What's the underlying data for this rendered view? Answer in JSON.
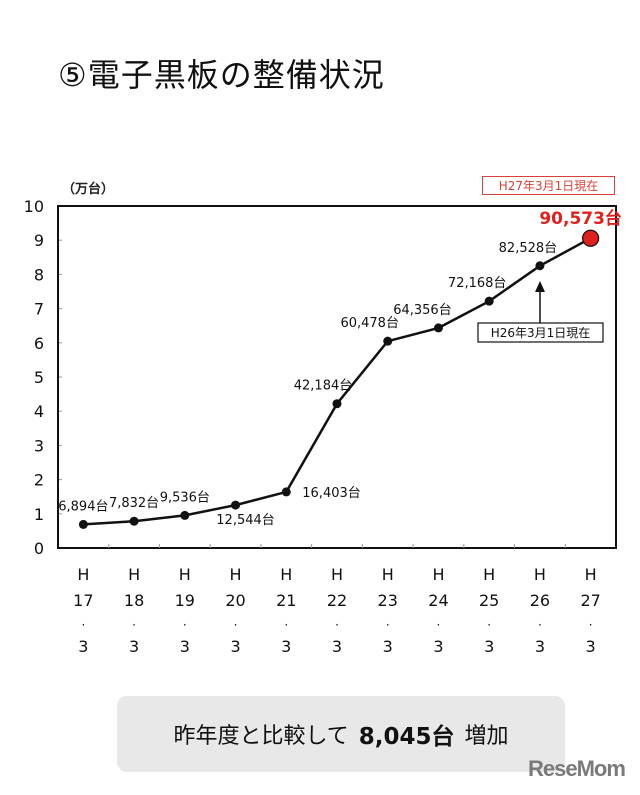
{
  "title": "⑤電子黒板の整備状況",
  "unit_label": "（万台）",
  "as_of_current": "H27年3月1日現在",
  "as_of_previous": "H26年3月1日現在",
  "summary": {
    "prefix": "昨年度と比較して",
    "value": "8,045台",
    "suffix": "増加"
  },
  "watermark": "ReseMom",
  "colors": {
    "line": "#111111",
    "highlight": "#e0201c",
    "highlight_text": "#e0201c",
    "summary_bg": "#e8e8e8"
  },
  "chart_data": {
    "type": "line",
    "title": "⑤電子黒板の整備状況",
    "xlabel": "",
    "ylabel": "（万台）",
    "ylim": [
      0,
      10
    ],
    "yticks": [
      0,
      1,
      2,
      3,
      4,
      5,
      6,
      7,
      8,
      9,
      10
    ],
    "grid": false,
    "categories": [
      "H17.3",
      "H18.3",
      "H19.3",
      "H20.3",
      "H21.3",
      "H22.3",
      "H23.3",
      "H24.3",
      "H25.3",
      "H26.3",
      "H27.3"
    ],
    "category_parts": [
      [
        "H",
        "17",
        "・",
        "3"
      ],
      [
        "H",
        "18",
        "・",
        "3"
      ],
      [
        "H",
        "19",
        "・",
        "3"
      ],
      [
        "H",
        "20",
        "・",
        "3"
      ],
      [
        "H",
        "21",
        "・",
        "3"
      ],
      [
        "H",
        "22",
        "・",
        "3"
      ],
      [
        "H",
        "23",
        "・",
        "3"
      ],
      [
        "H",
        "24",
        "・",
        "3"
      ],
      [
        "H",
        "25",
        "・",
        "3"
      ],
      [
        "H",
        "26",
        "・",
        "3"
      ],
      [
        "H",
        "27",
        "・",
        "3"
      ]
    ],
    "values": [
      6894,
      7832,
      9536,
      12544,
      16403,
      42184,
      60478,
      64356,
      72168,
      82528,
      90573
    ],
    "values_man": [
      0.6894,
      0.7832,
      0.9536,
      1.2544,
      1.6403,
      4.2184,
      6.0478,
      6.4356,
      7.2168,
      8.2528,
      9.0573
    ],
    "data_labels": [
      "6,894台",
      "7,832台",
      "9,536台",
      "12,544台",
      "16,403台",
      "42,184台",
      "60,478台",
      "64,356台",
      "72,168台",
      "82,528台",
      "90,573台"
    ],
    "annotations": [
      {
        "text": "H27年3月1日現在",
        "target": "H27.3",
        "color": "#e0201c"
      },
      {
        "text": "H26年3月1日現在",
        "target": "H26.3",
        "arrow": true
      }
    ]
  }
}
